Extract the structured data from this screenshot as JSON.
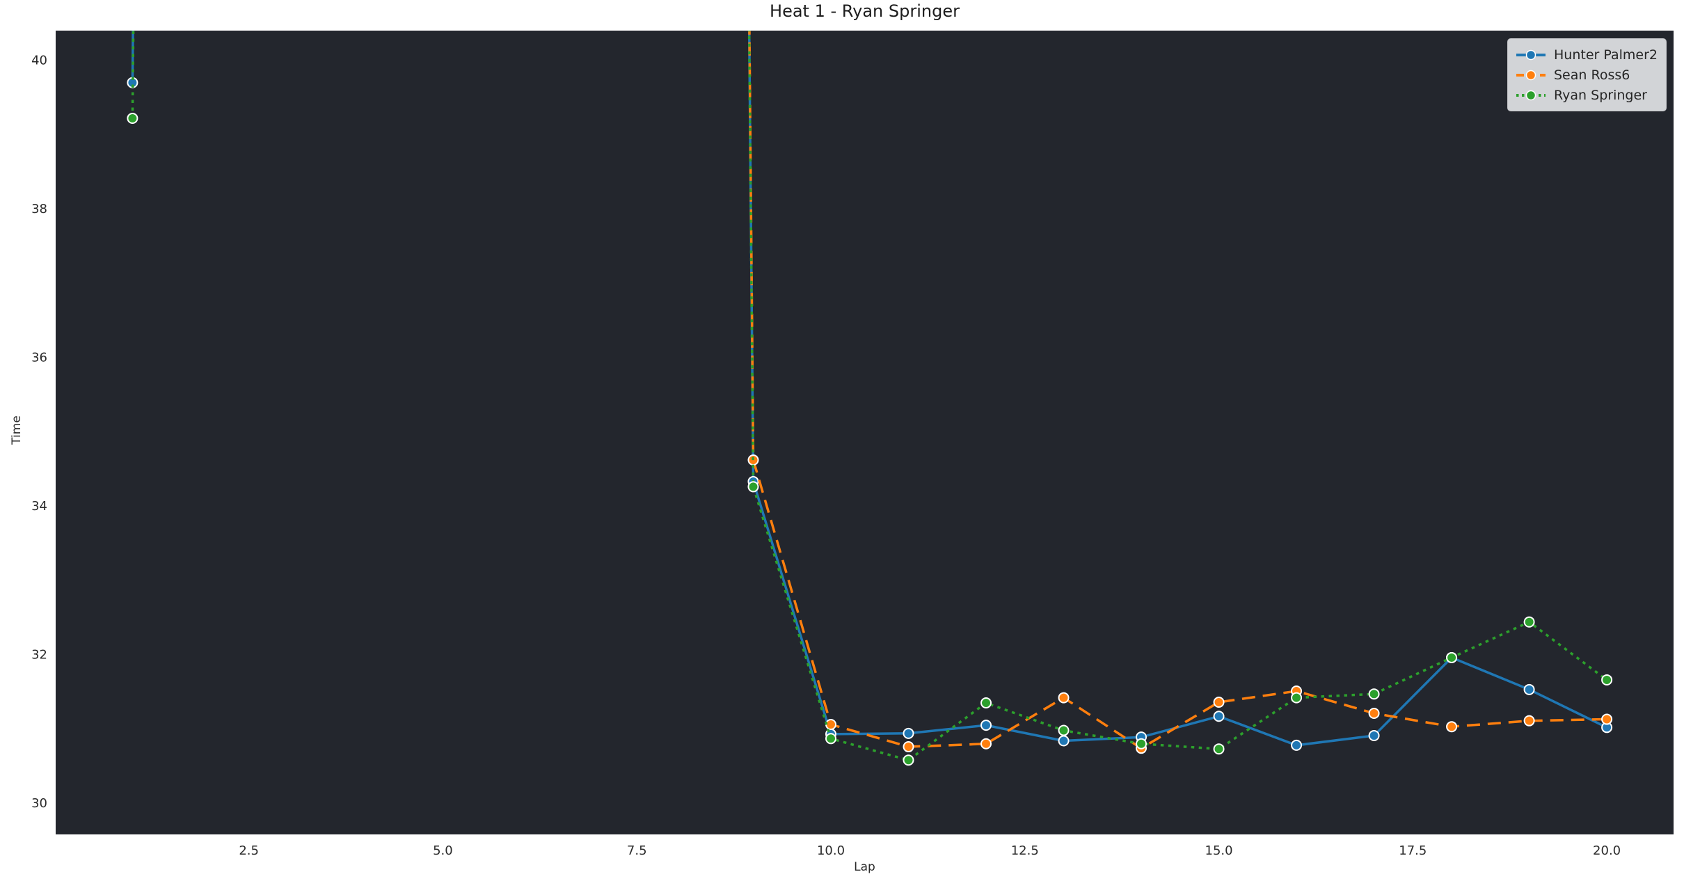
{
  "title": "Heat 1 - Ryan Springer",
  "colors": {
    "figure_background": "#ffffff",
    "plot_background": "#23262d",
    "tick_label": "#2a2a2a",
    "title_text": "#1d1d1d",
    "legend_background": "#d2d4d7",
    "legend_text": "#262626",
    "marker_edge": "#ffffff"
  },
  "legend": {
    "position": "upper right",
    "entries": [
      "Hunter Palmer2",
      "Sean Ross6",
      "Ryan Springer"
    ]
  },
  "chart_data": {
    "type": "line",
    "title": "Heat 1 - Ryan Springer",
    "xlabel": "Lap",
    "ylabel": "Time",
    "xlim": [
      0.01,
      20.86
    ],
    "ylim": [
      29.58,
      40.4
    ],
    "xticks": [
      2.5,
      5.0,
      7.5,
      10.0,
      12.5,
      15.0,
      17.5,
      20.0
    ],
    "yticks": [
      30,
      32,
      34,
      36,
      38,
      40
    ],
    "grid": false,
    "legend_position": "upper right",
    "note": "Laps 2-8 exceed the visible y-range; lines are clipped at the top of the axes (vertical spikes at lap 1 and lap 9). Off-scale values shown as null.",
    "x": [
      1,
      2,
      3,
      4,
      5,
      6,
      7,
      8,
      9,
      10,
      11,
      12,
      13,
      14,
      15,
      16,
      17,
      18,
      19,
      20
    ],
    "series": [
      {
        "name": "Hunter Palmer2",
        "color": "#1f77b4",
        "line_style": "solid",
        "marker": "circle",
        "values": [
          39.7,
          null,
          null,
          null,
          null,
          null,
          null,
          null,
          34.33,
          30.93,
          30.94,
          31.05,
          30.84,
          30.89,
          31.17,
          30.78,
          30.91,
          31.96,
          31.53,
          31.02
        ]
      },
      {
        "name": "Sean Ross6",
        "color": "#ff7f0e",
        "line_style": "dashed",
        "marker": "circle",
        "values": [
          null,
          null,
          null,
          null,
          null,
          null,
          null,
          null,
          34.62,
          31.06,
          30.76,
          30.8,
          31.42,
          30.74,
          31.36,
          31.51,
          31.21,
          31.03,
          31.11,
          31.13
        ]
      },
      {
        "name": "Ryan Springer",
        "color": "#2ca02c",
        "line_style": "dotted",
        "marker": "circle",
        "values": [
          39.22,
          null,
          null,
          null,
          null,
          null,
          null,
          null,
          34.26,
          30.87,
          30.58,
          31.35,
          30.98,
          30.8,
          30.73,
          31.42,
          31.47,
          31.96,
          32.44,
          31.66
        ]
      }
    ]
  }
}
